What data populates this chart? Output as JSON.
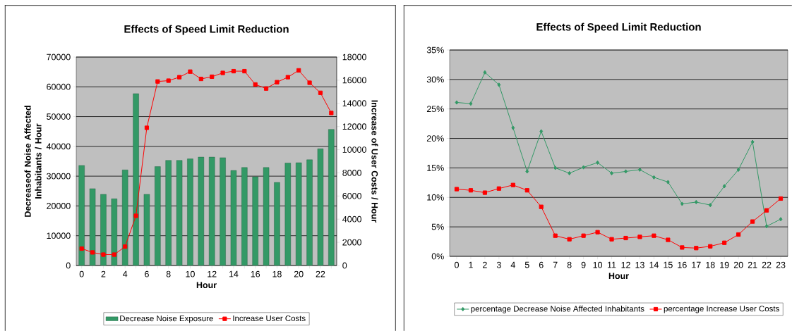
{
  "chart_data": [
    {
      "type": "bar",
      "title": "Effects of  Speed Limit Reduction",
      "xlabel": "Hour",
      "ylabel": "Decreaseof Noise Affected Inhabitants / Hour",
      "y2label": "Increase of User Costs / Hour",
      "categories": [
        "0",
        null,
        "2",
        null,
        "4",
        null,
        "6",
        null,
        "8",
        null,
        "10",
        null,
        "12",
        null,
        "14",
        null,
        "16",
        null,
        "18",
        null,
        "20",
        null,
        "22",
        null
      ],
      "series": [
        {
          "name": "Decrease Noise Exposure",
          "color": "#339966",
          "values": [
            33600,
            25800,
            23900,
            22400,
            32100,
            57700,
            23900,
            33200,
            35300,
            35300,
            35800,
            36400,
            36400,
            36200,
            31900,
            32900,
            29800,
            32900,
            27900,
            34400,
            34500,
            35500,
            39200,
            45700
          ]
        },
        {
          "name": "Increase User Costs",
          "type": "line",
          "axis": "y2",
          "marker": "square",
          "color": "#ff0000",
          "values": [
            1460,
            1130,
            940,
            940,
            1630,
            4290,
            11890,
            15890,
            15960,
            16260,
            16740,
            16110,
            16300,
            16630,
            16780,
            16780,
            15630,
            15280,
            15830,
            16260,
            16850,
            15780,
            14910,
            13170
          ]
        }
      ],
      "ylim": [
        0,
        70000
      ],
      "yticks": [
        0,
        10000,
        20000,
        30000,
        40000,
        50000,
        60000,
        70000
      ],
      "y2lim": [
        0,
        18000
      ],
      "y2ticks": [
        0,
        2000,
        4000,
        6000,
        8000,
        10000,
        12000,
        14000,
        16000,
        18000
      ],
      "grid": "y",
      "legend": "bottom"
    },
    {
      "type": "line",
      "title": "Effects of Speed Limit Reduction",
      "xlabel": "Hour",
      "categories": [
        "0",
        "1",
        "2",
        "3",
        "4",
        "5",
        "6",
        "7",
        "8",
        "9",
        "10",
        "11",
        "12",
        "13",
        "14",
        "15",
        "16",
        "17",
        "18",
        "19",
        "20",
        "21",
        "22",
        "23"
      ],
      "series": [
        {
          "name": "percentage Decrease Noise Affected Inhabitants",
          "marker": "diamond",
          "color": "#339966",
          "values": [
            26.1,
            25.9,
            31.2,
            29.1,
            21.8,
            14.4,
            21.2,
            15.0,
            14.1,
            15.1,
            15.9,
            14.1,
            14.4,
            14.7,
            13.4,
            12.6,
            8.9,
            9.2,
            8.7,
            11.9,
            14.7,
            19.4,
            5.1,
            6.3
          ]
        },
        {
          "name": "percentage Increase User Costs",
          "marker": "square",
          "color": "#ff0000",
          "values": [
            11.4,
            11.2,
            10.8,
            11.5,
            12.1,
            11.2,
            8.4,
            3.5,
            2.9,
            3.5,
            4.1,
            2.9,
            3.1,
            3.3,
            3.5,
            2.8,
            1.5,
            1.4,
            1.7,
            2.3,
            3.7,
            5.9,
            7.8,
            9.8
          ]
        }
      ],
      "ylim": [
        0,
        35
      ],
      "yticks": [
        {
          "value": 0,
          "label": "0%"
        },
        {
          "value": 5,
          "label": "5%"
        },
        {
          "value": 10,
          "label": "10%"
        },
        {
          "value": 15,
          "label": "15%"
        },
        {
          "value": 20,
          "label": "20%"
        },
        {
          "value": 25,
          "label": "25%"
        },
        {
          "value": 30,
          "label": "30%"
        },
        {
          "value": 35,
          "label": "35%"
        }
      ],
      "grid": "y",
      "legend": "bottom"
    }
  ]
}
